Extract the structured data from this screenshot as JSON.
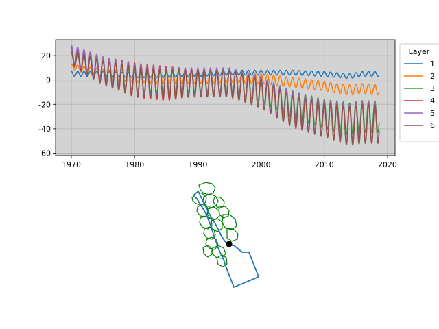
{
  "chart_data": {
    "type": "line",
    "title": "",
    "xlabel": "",
    "ylabel": "",
    "xlim": [
      1967.5,
      2021.2
    ],
    "ylim": [
      -62,
      33
    ],
    "xticks": [
      1970,
      1980,
      1990,
      2000,
      2010,
      2020
    ],
    "yticks": [
      20,
      0,
      -20,
      -40,
      -60
    ],
    "grid": true,
    "background": "#d3d3d3",
    "legend": {
      "title": "Layer",
      "placement": "outside-right"
    },
    "series": [
      {
        "name": "1",
        "color": "#1f77b4",
        "x": [
          1970,
          1975,
          1980,
          1985,
          1990,
          1995,
          2000,
          2005,
          2010,
          2012,
          2014,
          2016,
          2018.7
        ],
        "base": [
          5,
          5,
          4,
          4,
          5,
          6,
          6,
          6,
          5,
          4,
          3,
          5,
          5
        ],
        "amplitude": [
          2,
          2,
          2,
          2,
          2,
          2,
          2,
          2,
          2,
          2,
          2,
          2,
          2
        ]
      },
      {
        "name": "2",
        "color": "#ff7f0e",
        "x": [
          1970,
          1975,
          1980,
          1985,
          1990,
          1995,
          2000,
          2005,
          2010,
          2012,
          2014,
          2016,
          2018.7
        ],
        "base": [
          11,
          5,
          3,
          2,
          2,
          2,
          1,
          -2,
          -5,
          -7,
          -8,
          -7,
          -8
        ],
        "amplitude": [
          2,
          4,
          5,
          5,
          5,
          4,
          4,
          4,
          4,
          4,
          4,
          4,
          4
        ]
      },
      {
        "name": "3",
        "color": "#2ca02c",
        "x": [
          1970,
          1975,
          1980,
          1985,
          1990,
          1995,
          2000,
          2005,
          2010,
          2012,
          2014,
          2016,
          2018.7
        ],
        "base": [
          18,
          8,
          0,
          -2,
          -1,
          -1,
          -8,
          -20,
          -28,
          -30,
          -32,
          -30,
          -30
        ],
        "amplitude": [
          4,
          7,
          9,
          9,
          9,
          9,
          10,
          11,
          12,
          13,
          13,
          13,
          13
        ]
      },
      {
        "name": "4",
        "color": "#d62728",
        "x": [
          1970,
          1975,
          1980,
          1985,
          1990,
          1995,
          2000,
          2005,
          2010,
          2012,
          2014,
          2016,
          2018.7
        ],
        "base": [
          20,
          8,
          0,
          -3,
          -2,
          -2,
          -10,
          -24,
          -32,
          -34,
          -37,
          -35,
          -35
        ],
        "amplitude": [
          7,
          11,
          14,
          14,
          11,
          11,
          12,
          13,
          14,
          15,
          16,
          16,
          16
        ]
      },
      {
        "name": "5",
        "color": "#9467bd",
        "x": [
          1970,
          1975,
          1980,
          1985,
          1990,
          1995,
          2000,
          2005,
          2010,
          2012,
          2014,
          2016,
          2018.7
        ],
        "base": [
          22,
          9,
          1,
          -2,
          -1,
          -1,
          -9,
          -23,
          -31,
          -33,
          -36,
          -34,
          -34
        ],
        "amplitude": [
          7,
          10,
          12,
          12,
          11,
          11,
          12,
          13,
          14,
          15,
          16,
          16,
          16
        ]
      },
      {
        "name": "6",
        "color": "#8c564b",
        "x": [
          1970,
          1975,
          1980,
          1985,
          1990,
          1995,
          2000,
          2005,
          2010,
          2012,
          2014,
          2016,
          2018.7
        ],
        "base": [
          18,
          6,
          -1,
          -3,
          -3,
          -3,
          -11,
          -26,
          -33,
          -35,
          -38,
          -36,
          -36
        ],
        "amplitude": [
          6,
          10,
          12,
          12,
          11,
          11,
          12,
          13,
          14,
          15,
          16,
          16,
          16
        ]
      }
    ]
  },
  "map": {
    "outline_color": "#1f77b4",
    "region_color": "#008000",
    "marker_color": "#000000"
  }
}
